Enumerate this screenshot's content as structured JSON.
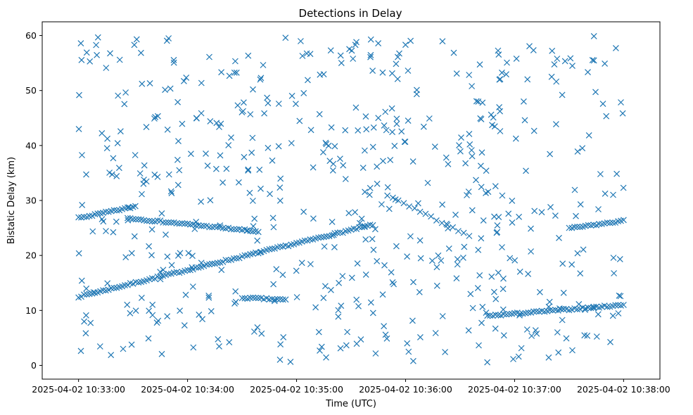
{
  "chart_data": {
    "type": "scatter",
    "title": "Detections in Delay",
    "xlabel": "Time (UTC)",
    "ylabel": "Bistatic Delay (km)",
    "marker": "x",
    "color": "#1f77b4",
    "x_unit": "seconds after 2025-04-02 10:33:00",
    "xlim": [
      -20,
      320
    ],
    "ylim": [
      -2.5,
      62.5
    ],
    "xticks": [
      0,
      60,
      120,
      180,
      240,
      300
    ],
    "xtick_labels": [
      "2025-04-02 10:33:00",
      "2025-04-02 10:34:00",
      "2025-04-02 10:35:00",
      "2025-04-02 10:36:00",
      "2025-04-02 10:37:00",
      "2025-04-02 10:38:00"
    ],
    "yticks": [
      0,
      10,
      20,
      30,
      40,
      50,
      60
    ],
    "ytick_labels": [
      "0",
      "10",
      "20",
      "30",
      "40",
      "50",
      "60"
    ],
    "tracks": [
      {
        "name": "rising track",
        "t_start": 0,
        "t_end": 162,
        "y_start": 12.5,
        "y_end": 25.6,
        "step_s": 1.5
      },
      {
        "name": "upper track (early)",
        "t_start": 0,
        "t_end": 30,
        "y_start": 26.8,
        "y_end": 28.8,
        "step_s": 1.5
      },
      {
        "name": "upper track (middle)",
        "t_start": 27,
        "t_end": 100,
        "y_start": 26.8,
        "y_end": 24.3,
        "step_s": 1.5
      },
      {
        "name": "upper track (late)",
        "t_start": 270,
        "t_end": 300,
        "y_start": 24.9,
        "y_end": 26.3,
        "step_s": 1.5
      },
      {
        "name": "lower track (middle)",
        "t_start": 90,
        "t_end": 115,
        "y_start": 12.3,
        "y_end": 11.9,
        "step_s": 1.5
      },
      {
        "name": "lower track (late)",
        "t_start": 225,
        "t_end": 300,
        "y_start": 9.0,
        "y_end": 11.0,
        "step_s": 1.5
      },
      {
        "name": "falling track",
        "t_start": 170,
        "t_end": 215,
        "y_start": 31.0,
        "y_end": 23.5,
        "step_s": 3
      }
    ],
    "clutter": {
      "description": "randomly scattered false-alarm detections spanning the full time window",
      "t_range": [
        0,
        300
      ],
      "y_range": [
        0.5,
        60
      ],
      "count": 560,
      "seed": 7
    }
  }
}
